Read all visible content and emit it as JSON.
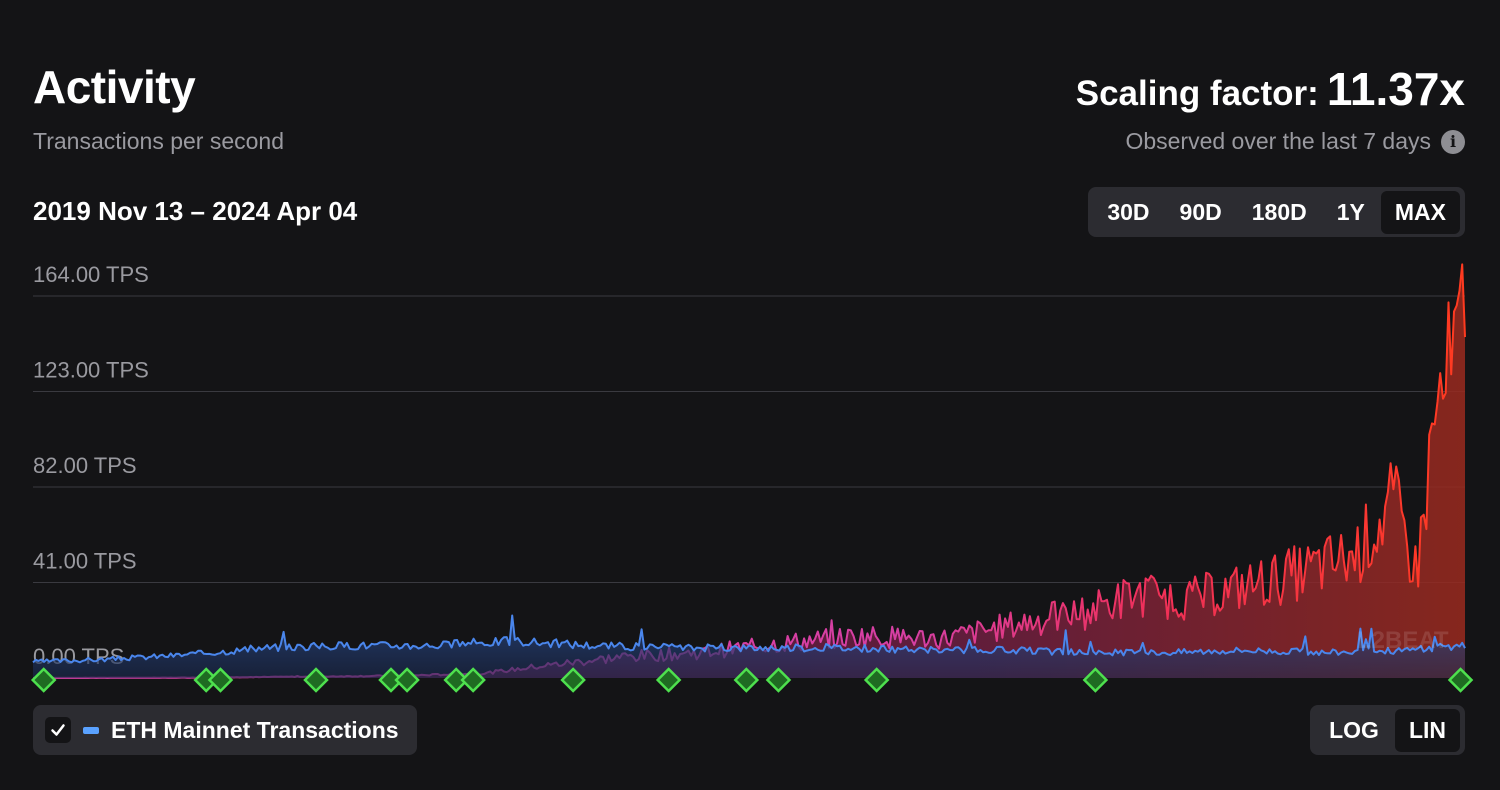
{
  "header": {
    "title": "Activity",
    "subtitle": "Transactions per second",
    "scaling_label": "Scaling factor:",
    "scaling_value": "11.37x",
    "observed": "Observed over the last 7 days",
    "date_range": "2019 Nov 13 – 2024 Apr 04"
  },
  "range_buttons": [
    "30D",
    "90D",
    "180D",
    "1Y",
    "MAX"
  ],
  "range_selected": "MAX",
  "legend": {
    "checked": true,
    "label": "ETH Mainnet Transactions"
  },
  "scale_buttons": [
    "LOG",
    "LIN"
  ],
  "scale_selected": "LIN",
  "watermark": "L2BEAT",
  "colors": {
    "eth": "#4a86ec",
    "l2_low": "#d63fa3",
    "l2_high": "#ff3a1f",
    "milestone": "#4ee04e",
    "background": "#141416"
  },
  "chart_data": {
    "type": "area",
    "y_tick_labels": [
      "164.00 TPS",
      "123.00 TPS",
      "82.00 TPS",
      "41.00 TPS",
      "0.00 TPS"
    ],
    "y_ticks": [
      164,
      123,
      82,
      41,
      0
    ],
    "ylim": [
      0,
      164
    ],
    "xlim": [
      "2019-11-13",
      "2024-04-04"
    ],
    "scale": "linear",
    "series": [
      {
        "name": "ETH Mainnet Transactions",
        "x": [
          "2019-11-13",
          "2020-02-01",
          "2020-05-01",
          "2020-08-01",
          "2020-11-01",
          "2021-02-01",
          "2021-05-01",
          "2021-08-01",
          "2021-11-01",
          "2022-02-01",
          "2022-05-01",
          "2022-08-01",
          "2022-11-01",
          "2023-02-01",
          "2023-05-01",
          "2023-08-01",
          "2023-11-01",
          "2024-02-01",
          "2024-04-04"
        ],
        "values": [
          7,
          8,
          10,
          13,
          14,
          14,
          16,
          14,
          13,
          13,
          13,
          12,
          12,
          11,
          11,
          12,
          11,
          12,
          14
        ]
      },
      {
        "name": "",
        "x": [
          "2019-11-13",
          "2020-06-01",
          "2021-01-01",
          "2021-04-01",
          "2021-06-01",
          "2021-09-01",
          "2021-12-01",
          "2022-03-01",
          "2022-06-01",
          "2022-09-01",
          "2022-12-01",
          "2023-02-01",
          "2023-04-01",
          "2023-06-01",
          "2023-09-01",
          "2023-12-01",
          "2024-01-15",
          "2024-02-10",
          "2024-03-01",
          "2024-04-04"
        ],
        "values": [
          0,
          0.2,
          1,
          2,
          5,
          9,
          11,
          15,
          18,
          17,
          24,
          28,
          36,
          34,
          42,
          52,
          75,
          45,
          110,
          150
        ]
      }
    ]
  },
  "milestones": [
    "2019-11-25",
    "2020-05-25",
    "2020-06-10",
    "2020-09-25",
    "2020-12-18",
    "2021-01-05",
    "2021-03-01",
    "2021-03-20",
    "2021-07-10",
    "2021-10-25",
    "2022-01-20",
    "2022-02-25",
    "2022-06-15",
    "2023-02-15",
    "2024-03-30"
  ]
}
